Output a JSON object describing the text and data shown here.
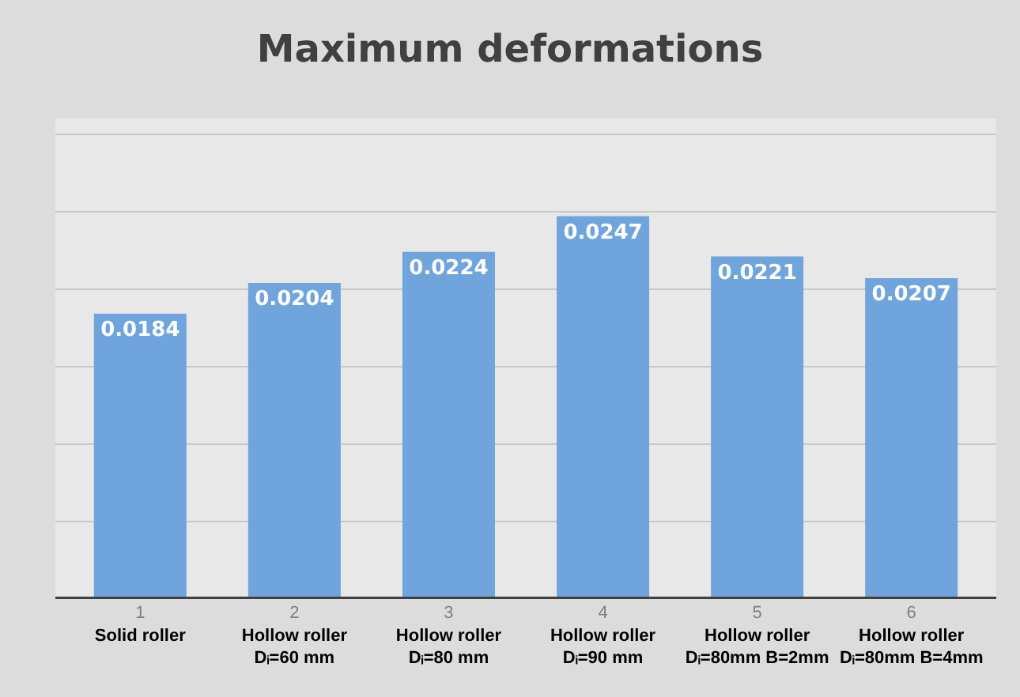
{
  "chart_data": {
    "type": "bar",
    "title": "Maximum deformations",
    "categories": [
      "1\nSolid roller",
      "2\nHollow roller\nDᵢ=60 mm",
      "3\nHollow roller\nDᵢ=80 mm",
      "4\nHollow roller\nDᵢ=90 mm",
      "5\nHollow roller\nDᵢ=80mm B=2mm",
      "6\nHollow roller\nDᵢ=80mm B=4mm"
    ],
    "values": [
      0.0184,
      0.0204,
      0.0224,
      0.0247,
      0.0221,
      0.0207
    ],
    "color": "#6fa5dc",
    "ylim": [
      0,
      0.031
    ],
    "yticks": [
      {
        "value": 0,
        "label": null
      },
      {
        "value": 0.005,
        "label": null
      },
      {
        "value": 0.01,
        "label": null
      },
      {
        "value": 0.015,
        "label": null
      },
      {
        "value": 0.02,
        "label": null
      },
      {
        "value": 0.025,
        "label": null
      },
      {
        "value": 0.03,
        "label": null
      }
    ],
    "grid": "y",
    "data_labels": true,
    "tick_labels": "x"
  }
}
